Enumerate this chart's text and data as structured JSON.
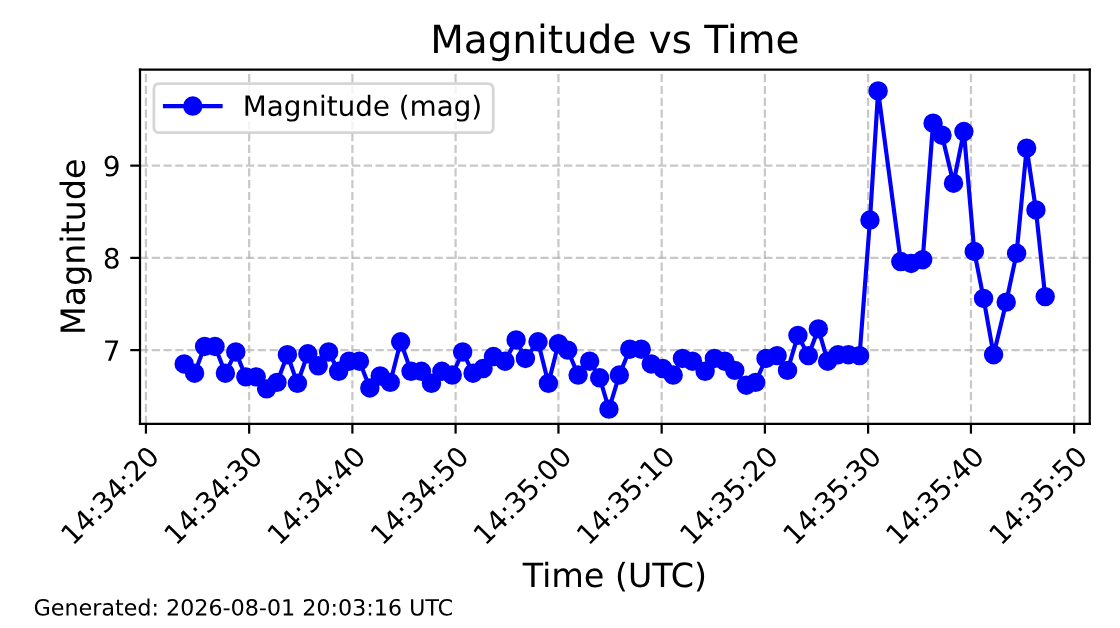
{
  "chart_data": {
    "type": "line",
    "title": "Magnitude vs Time",
    "xlabel": "Time (UTC)",
    "ylabel": "Magnitude",
    "annotations": [
      "Generated: 2026-08-01 20:03:16 UTC"
    ],
    "x": [
      14.57325,
      14.57353,
      14.5738,
      14.57408,
      14.57436,
      14.57464,
      14.57491,
      14.57519,
      14.57547,
      14.57575,
      14.57603,
      14.5763,
      14.57658,
      14.57686,
      14.57714,
      14.57741,
      14.57769,
      14.57797,
      14.57825,
      14.57853,
      14.5788,
      14.57908,
      14.57936,
      14.57964,
      14.57991,
      14.58019,
      14.58047,
      14.58075,
      14.58103,
      14.5813,
      14.58158,
      14.58189,
      14.58219,
      14.58244,
      14.58278,
      14.58306,
      14.58333,
      14.58358,
      14.58386,
      14.58417,
      14.58444,
      14.58469,
      14.58497,
      14.58525,
      14.58556,
      14.58583,
      14.58614,
      14.58642,
      14.58667,
      14.58694,
      14.58728,
      14.58753,
      14.58781,
      14.58808,
      14.58839,
      14.58864,
      14.58892,
      14.58922,
      14.5895,
      14.58978,
      14.59006,
      14.59033,
      14.59058,
      14.59086,
      14.59114,
      14.59144,
      14.59172,
      14.59194,
      14.59255,
      14.59283,
      14.59314,
      14.59342,
      14.59366,
      14.59397,
      14.59425,
      14.59453,
      14.59478,
      14.59505,
      14.59539,
      14.59567,
      14.59594,
      14.59619,
      14.59644
    ],
    "series": [
      {
        "name": "Magnitude (mag)",
        "color": "#0000ff",
        "values": [
          6.85,
          6.75,
          7.04,
          7.04,
          6.75,
          6.98,
          6.71,
          6.71,
          6.58,
          6.65,
          6.95,
          6.64,
          6.96,
          6.83,
          6.98,
          6.77,
          6.88,
          6.88,
          6.59,
          6.72,
          6.65,
          7.09,
          6.77,
          6.77,
          6.64,
          6.77,
          6.73,
          6.98,
          6.75,
          6.8,
          6.93,
          6.88,
          7.11,
          6.91,
          7.09,
          6.64,
          7.07,
          7.0,
          6.73,
          6.88,
          6.7,
          6.36,
          6.73,
          7.01,
          7.01,
          6.85,
          6.8,
          6.73,
          6.91,
          6.88,
          6.77,
          6.91,
          6.88,
          6.78,
          6.62,
          6.65,
          6.91,
          6.94,
          6.78,
          7.16,
          6.94,
          7.23,
          6.88,
          6.95,
          6.95,
          6.94,
          8.41,
          9.81,
          7.96,
          7.94,
          7.98,
          9.46,
          9.33,
          8.81,
          9.37,
          8.07,
          7.56,
          6.95,
          7.52,
          8.05,
          9.19,
          8.52,
          7.58
        ]
      }
    ],
    "xlim": [
      14.57206,
      14.59764
    ],
    "xticks": [
      {
        "value": 14.57222,
        "label": "14:34:20"
      },
      {
        "value": 14.575,
        "label": "14:34:30"
      },
      {
        "value": 14.57778,
        "label": "14:34:40"
      },
      {
        "value": 14.58056,
        "label": "14:34:50"
      },
      {
        "value": 14.58333,
        "label": "14:35:00"
      },
      {
        "value": 14.58611,
        "label": "14:35:10"
      },
      {
        "value": 14.58889,
        "label": "14:35:20"
      },
      {
        "value": 14.59167,
        "label": "14:35:30"
      },
      {
        "value": 14.59444,
        "label": "14:35:40"
      },
      {
        "value": 14.59722,
        "label": "14:35:50"
      }
    ],
    "ylim": [
      6.2,
      10.04
    ],
    "yticks": [
      7,
      8,
      9
    ],
    "grid": true,
    "legend": "top left",
    "marker": "circle",
    "line_style": "solid"
  }
}
